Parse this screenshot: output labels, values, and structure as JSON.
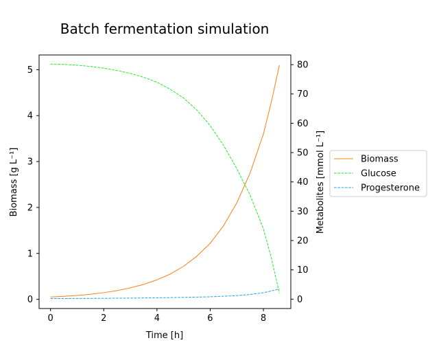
{
  "chart_data": {
    "type": "line",
    "title": "Batch fermentation simulation",
    "xlabel": "Time [h]",
    "ylabel_left": "Biomass [g L⁻¹]",
    "ylabel_right": "Metabolites [mmol L⁻¹]",
    "xlim": [
      -0.43,
      9.03
    ],
    "ylim_left": [
      -0.2,
      5.32
    ],
    "ylim_right": [
      -3.2,
      83.3
    ],
    "xticks": [
      "0",
      "2",
      "4",
      "6",
      "8"
    ],
    "yticks_left": [
      "0",
      "1",
      "2",
      "3",
      "4",
      "5"
    ],
    "yticks_right": [
      "0",
      "10",
      "20",
      "30",
      "40",
      "50",
      "60",
      "70",
      "80"
    ],
    "grid": false,
    "legend_position": "outside-right",
    "series": [
      {
        "name": "Biomass",
        "axis": "left",
        "color": "#ff7f0e",
        "style": "solid",
        "x": [
          0,
          0.5,
          1,
          1.5,
          2,
          2.5,
          3,
          3.5,
          4,
          4.5,
          5,
          5.5,
          6,
          6.5,
          7,
          7.5,
          8,
          8.3,
          8.6
        ],
        "values": [
          0.05,
          0.065,
          0.085,
          0.11,
          0.145,
          0.19,
          0.25,
          0.325,
          0.425,
          0.55,
          0.72,
          0.94,
          1.22,
          1.6,
          2.1,
          2.75,
          3.6,
          4.3,
          5.1
        ]
      },
      {
        "name": "Glucose",
        "axis": "right",
        "color": "#22ee22",
        "style": "dashed",
        "x": [
          0,
          0.5,
          1,
          1.5,
          2,
          2.5,
          3,
          3.5,
          4,
          4.5,
          5,
          5.5,
          6,
          6.5,
          7,
          7.5,
          8,
          8.3,
          8.6
        ],
        "values": [
          80.2,
          80.1,
          79.8,
          79.4,
          78.8,
          78.0,
          77.0,
          75.7,
          74.0,
          71.6,
          68.6,
          64.5,
          59.2,
          52.5,
          44.5,
          35.5,
          24.0,
          14.0,
          2.0
        ]
      },
      {
        "name": "Progesterone",
        "axis": "right",
        "color": "#1fa5e8",
        "style": "dashed",
        "x": [
          0,
          1,
          2,
          3,
          4,
          5,
          6,
          7,
          7.5,
          8,
          8.3,
          8.6
        ],
        "values": [
          0.2,
          0.22,
          0.28,
          0.35,
          0.45,
          0.6,
          0.8,
          1.2,
          1.6,
          2.2,
          2.8,
          3.5
        ]
      }
    ]
  }
}
